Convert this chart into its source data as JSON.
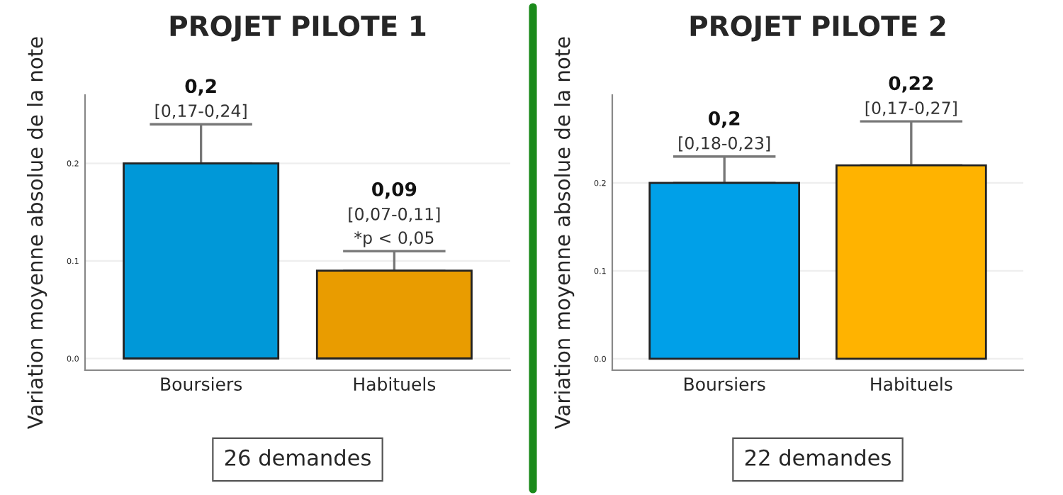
{
  "chart_data": [
    {
      "type": "bar",
      "title": "PROJET PILOTE 1",
      "ylabel": "Variation moyenne absolue de la note",
      "categories": [
        "Boursiers",
        "Habituels"
      ],
      "values": [
        0.2,
        0.09
      ],
      "colors": [
        "#0098d8",
        "#e99c00"
      ],
      "errors": [
        [
          0.2,
          0.24
        ],
        [
          0.09,
          0.11
        ]
      ],
      "annotations": [
        {
          "text": "[0,17-0,24]",
          "x": "Boursiers",
          "y": 0.24
        },
        {
          "text": "0,2",
          "x": "Boursiers",
          "y": 0.24
        },
        {
          "text": "*p < 0,05",
          "x": "Habituels",
          "y": 0.11
        },
        {
          "text": "[0,07-0,11]",
          "x": "Habituels",
          "y": 0.11
        },
        {
          "text": "0,09",
          "x": "Habituels",
          "y": 0.11
        },
        "26 demandes"
      ],
      "ylim": [
        -0.012,
        0.27
      ],
      "yticks": [
        {
          "value": 0,
          "label": "0.0"
        },
        {
          "value": 0.1,
          "label": "0.1"
        },
        {
          "value": 0.2,
          "label": "0.2"
        }
      ],
      "grid": "y"
    },
    {
      "type": "bar",
      "title": "PROJET PILOTE 2",
      "ylabel": "Variation moyenne absolue de la note",
      "categories": [
        "Boursiers",
        "Habituels"
      ],
      "values": [
        0.2,
        0.22
      ],
      "colors": [
        "#00a0e8",
        "#ffb300"
      ],
      "errors": [
        [
          0.2,
          0.23
        ],
        [
          0.22,
          0.27
        ]
      ],
      "annotations": [
        {
          "text": "[0,18-0,23]",
          "x": "Boursiers",
          "y": 0.23
        },
        {
          "text": "0,2",
          "x": "Boursiers",
          "y": 0.23
        },
        {
          "text": "[0,17-0,27]",
          "x": "Habituels",
          "y": 0.27
        },
        {
          "text": "0,22",
          "x": "Habituels",
          "y": 0.27
        },
        "22 demandes"
      ],
      "ylim": [
        -0.013,
        0.3
      ],
      "yticks": [
        {
          "value": 0,
          "label": "0.0"
        },
        {
          "value": 0.1,
          "label": "0.1"
        },
        {
          "value": 0.2,
          "label": "0.2"
        }
      ],
      "grid": "y"
    }
  ]
}
